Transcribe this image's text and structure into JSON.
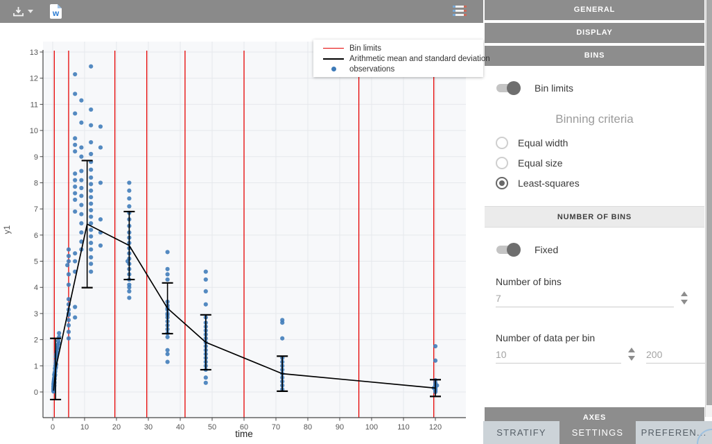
{
  "toolbar": {
    "export_letter": "w"
  },
  "legend": {
    "items": [
      {
        "label": "Bin limits",
        "color": "#e60000",
        "sample": "line"
      },
      {
        "label": "Arithmetic mean and standard deviation",
        "color": "#000000",
        "sample": "line"
      },
      {
        "label": "observations",
        "color": "#3d7ab8",
        "sample": "dot"
      }
    ]
  },
  "chart_data": {
    "type": "scatter",
    "title": "",
    "xlabel": "time",
    "ylabel": "y1",
    "xlim": [
      -3,
      129.5
    ],
    "ylim": [
      -1,
      13.4
    ],
    "xticks": [
      0,
      10,
      20,
      30,
      40,
      50,
      60,
      70,
      80,
      90,
      100,
      110,
      120
    ],
    "yticks": [
      0,
      1,
      2,
      3,
      4,
      5,
      6,
      7,
      8,
      9,
      10,
      11,
      12,
      13
    ],
    "grid": true,
    "legend_position": "top-right",
    "colors": {
      "bin_limit": "#e60000",
      "mean_line": "#000000",
      "observation": "#3d7ab8"
    },
    "bin_limits": [
      0.5,
      5,
      19.5,
      29.5,
      41.5,
      60,
      96,
      119.5
    ],
    "mean_sd_series": {
      "name": "Arithmetic mean and standard deviation",
      "line_prefix": [
        [
          0.3,
          0.05
        ]
      ],
      "x": [
        0.9,
        10.8,
        24,
        36,
        48,
        72,
        120
      ],
      "mean": [
        0.88,
        6.42,
        5.6,
        3.2,
        1.9,
        0.7,
        0.15
      ],
      "sd": [
        1.17,
        2.43,
        1.3,
        0.97,
        1.05,
        0.67,
        0.32
      ]
    },
    "observations": [
      [
        0.25,
        0.02
      ],
      [
        0.25,
        0.08
      ],
      [
        0.25,
        0.15
      ],
      [
        0.25,
        0.22
      ],
      [
        0.25,
        0.3
      ],
      [
        0.3,
        0.05
      ],
      [
        0.3,
        0.12
      ],
      [
        0.3,
        0.2
      ],
      [
        0.3,
        0.35
      ],
      [
        0.35,
        0.1
      ],
      [
        0.35,
        0.25
      ],
      [
        0.35,
        0.4
      ],
      [
        0.4,
        0.15
      ],
      [
        0.4,
        0.3
      ],
      [
        0.4,
        0.45
      ],
      [
        0.45,
        0.2
      ],
      [
        0.45,
        0.5
      ],
      [
        0.5,
        0.25
      ],
      [
        0.5,
        0.4
      ],
      [
        0.5,
        0.55
      ],
      [
        0.5,
        0.65
      ],
      [
        0.55,
        0.35
      ],
      [
        0.6,
        0.5
      ],
      [
        0.6,
        0.7
      ],
      [
        0.65,
        0.6
      ],
      [
        0.7,
        0.75
      ],
      [
        0.75,
        0.65
      ],
      [
        0.75,
        0.9
      ],
      [
        0.8,
        0.8
      ],
      [
        0.85,
        1.0
      ],
      [
        0.9,
        0.9
      ],
      [
        0.95,
        1.1
      ],
      [
        1,
        0.95
      ],
      [
        1,
        1.2
      ],
      [
        1,
        1.35
      ],
      [
        1.1,
        1.05
      ],
      [
        1.1,
        1.45
      ],
      [
        1.2,
        1.3
      ],
      [
        1.25,
        1.55
      ],
      [
        1.3,
        1.4
      ],
      [
        1.4,
        1.65
      ],
      [
        1.5,
        1.5
      ],
      [
        1.5,
        1.8
      ],
      [
        1.6,
        1.7
      ],
      [
        1.75,
        1.95
      ],
      [
        2,
        1.85
      ],
      [
        2,
        2.1
      ],
      [
        2,
        2.25
      ],
      [
        5,
        2.05
      ],
      [
        5,
        2.3
      ],
      [
        5,
        2.55
      ],
      [
        5,
        2.75
      ],
      [
        5,
        2.95
      ],
      [
        5,
        3.0
      ],
      [
        5,
        3.15
      ],
      [
        5,
        3.35
      ],
      [
        5,
        3.55
      ],
      [
        5,
        4.1
      ],
      [
        5,
        4.5
      ],
      [
        5,
        5.0
      ],
      [
        5,
        5.2
      ],
      [
        5,
        5.45
      ],
      [
        4.6,
        4.85
      ],
      [
        7,
        2.85
      ],
      [
        7,
        3.25
      ],
      [
        7,
        4.6
      ],
      [
        7,
        5.0
      ],
      [
        7,
        5.3
      ],
      [
        7,
        6.9
      ],
      [
        7,
        7.35
      ],
      [
        7,
        7.6
      ],
      [
        7,
        7.85
      ],
      [
        7,
        8.1
      ],
      [
        7,
        8.35
      ],
      [
        7,
        9.2
      ],
      [
        7,
        9.45
      ],
      [
        7,
        9.7
      ],
      [
        7,
        10.65
      ],
      [
        7,
        11.4
      ],
      [
        7,
        12.15
      ],
      [
        9,
        5.45
      ],
      [
        9,
        5.75
      ],
      [
        9,
        6.1
      ],
      [
        9,
        6.45
      ],
      [
        9,
        6.8
      ],
      [
        9,
        7.15
      ],
      [
        9,
        7.5
      ],
      [
        9,
        7.8
      ],
      [
        9,
        8.1
      ],
      [
        9,
        8.45
      ],
      [
        9,
        9.0
      ],
      [
        9,
        9.35
      ],
      [
        9,
        10.3
      ],
      [
        9,
        11.15
      ],
      [
        12,
        4.6
      ],
      [
        12,
        4.9
      ],
      [
        12,
        5.15
      ],
      [
        12,
        5.45
      ],
      [
        12,
        5.7
      ],
      [
        12,
        5.95
      ],
      [
        12,
        6.2
      ],
      [
        12,
        6.45
      ],
      [
        12,
        6.7
      ],
      [
        12,
        6.95
      ],
      [
        12,
        7.2
      ],
      [
        12,
        7.45
      ],
      [
        12,
        7.7
      ],
      [
        12,
        7.95
      ],
      [
        12,
        8.2
      ],
      [
        12,
        8.5
      ],
      [
        12,
        8.8
      ],
      [
        12,
        9.1
      ],
      [
        12,
        9.55
      ],
      [
        12,
        10.2
      ],
      [
        12,
        10.8
      ],
      [
        12,
        12.45
      ],
      [
        15,
        5.6
      ],
      [
        15,
        6.1
      ],
      [
        15,
        6.6
      ],
      [
        15,
        8.0
      ],
      [
        15,
        9.35
      ],
      [
        15,
        10.15
      ],
      [
        24,
        3.6
      ],
      [
        24,
        3.85
      ],
      [
        24,
        4.0
      ],
      [
        24,
        4.1
      ],
      [
        24,
        4.3
      ],
      [
        24,
        4.5
      ],
      [
        24,
        4.7
      ],
      [
        24,
        4.9
      ],
      [
        24,
        5.1
      ],
      [
        23.5,
        5.0
      ],
      [
        24,
        5.3
      ],
      [
        24,
        5.5
      ],
      [
        24,
        5.7
      ],
      [
        24,
        5.9
      ],
      [
        24,
        6.1
      ],
      [
        24,
        6.35
      ],
      [
        24,
        6.6
      ],
      [
        24,
        6.85
      ],
      [
        24,
        7.1
      ],
      [
        24,
        7.4
      ],
      [
        24,
        7.7
      ],
      [
        24,
        8.0
      ],
      [
        36,
        1.15
      ],
      [
        36,
        1.45
      ],
      [
        36,
        1.6
      ],
      [
        36,
        2.1
      ],
      [
        36,
        2.25
      ],
      [
        36,
        2.4
      ],
      [
        36,
        2.55
      ],
      [
        36,
        2.7
      ],
      [
        36,
        2.85
      ],
      [
        36,
        2.95
      ],
      [
        36,
        3.0
      ],
      [
        36,
        3.15
      ],
      [
        36,
        3.2
      ],
      [
        36,
        3.3
      ],
      [
        36,
        3.45
      ],
      [
        36,
        4.3
      ],
      [
        36,
        4.5
      ],
      [
        36,
        4.7
      ],
      [
        36,
        5.35
      ],
      [
        48,
        0.35
      ],
      [
        48,
        0.55
      ],
      [
        48,
        0.85
      ],
      [
        48,
        1.0
      ],
      [
        48,
        1.15
      ],
      [
        48,
        1.3
      ],
      [
        48,
        1.45
      ],
      [
        48,
        1.6
      ],
      [
        48,
        1.75
      ],
      [
        48,
        1.9
      ],
      [
        48,
        2.05
      ],
      [
        48,
        2.2
      ],
      [
        48,
        2.35
      ],
      [
        48,
        2.5
      ],
      [
        48,
        2.65
      ],
      [
        48,
        2.85
      ],
      [
        48,
        3.35
      ],
      [
        48,
        3.85
      ],
      [
        48,
        4.3
      ],
      [
        48,
        4.6
      ],
      [
        72,
        0.1
      ],
      [
        72,
        0.25
      ],
      [
        72,
        0.4
      ],
      [
        72,
        0.55
      ],
      [
        72,
        0.7
      ],
      [
        72,
        0.85
      ],
      [
        72,
        1.0
      ],
      [
        72,
        1.15
      ],
      [
        72,
        1.3
      ],
      [
        72,
        2.05
      ],
      [
        72,
        2.65
      ],
      [
        72,
        2.75
      ],
      [
        120,
        0.0
      ],
      [
        120,
        0.05
      ],
      [
        120,
        0.1
      ],
      [
        120,
        0.15
      ],
      [
        120,
        0.2
      ],
      [
        120,
        0.25
      ],
      [
        120,
        0.3
      ],
      [
        120,
        0.35
      ],
      [
        120,
        0.45
      ],
      [
        119.5,
        0.15
      ],
      [
        120.5,
        0.25
      ],
      [
        120,
        1.2
      ],
      [
        120,
        1.75
      ]
    ]
  },
  "sidebar": {
    "sections": {
      "general": "GENERAL",
      "display": "DISPLAY",
      "bins": "BINS",
      "number_of_bins": "NUMBER OF BINS",
      "axes": "AXES"
    },
    "bin_limits_toggle": {
      "label": "Bin limits",
      "on": true
    },
    "binning": {
      "heading": "Binning criteria",
      "options": [
        {
          "label": "Equal width",
          "selected": false
        },
        {
          "label": "Equal size",
          "selected": false
        },
        {
          "label": "Least-squares",
          "selected": true
        }
      ]
    },
    "fixed_toggle": {
      "label": "Fixed",
      "on": true
    },
    "number_of_bins": {
      "label": "Number of bins",
      "value": "7"
    },
    "number_of_data_per_bin": {
      "label": "Number of data per bin",
      "min": "10",
      "max": "200"
    }
  },
  "tabs": [
    {
      "label": "STRATIFY",
      "active": false
    },
    {
      "label": "SETTINGS",
      "active": true
    },
    {
      "label": "PREFEREN...",
      "active": false
    }
  ]
}
